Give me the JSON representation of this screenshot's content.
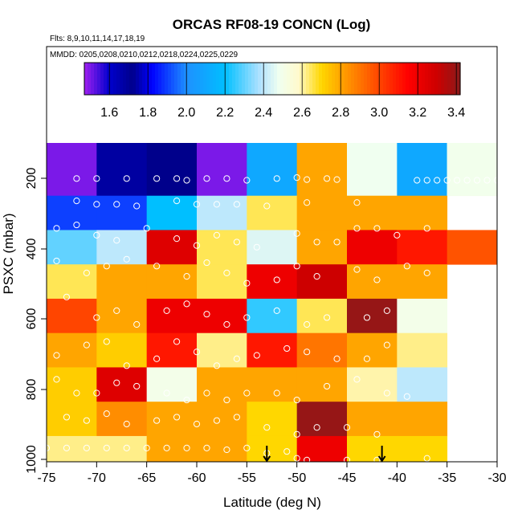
{
  "chart_data": {
    "type": "heatmap",
    "title": "ORCAS RF08-19 CONCN (Log)",
    "flights_label": "Flts: 8,9,10,11,14,17,18,19",
    "dates_label": "MMDD: 0205,0208,0210,0212,0218,0224,0225,0229",
    "xlabel": "Latitude (deg N)",
    "ylabel": "PSXC (mbar)",
    "xlim": [
      -75,
      -30
    ],
    "ylim": [
      1000,
      100
    ],
    "x_ticks": [
      -75,
      -70,
      -65,
      -60,
      -55,
      -50,
      -45,
      -40,
      -35,
      -30
    ],
    "x_tick_labels": [
      "-75",
      "-70",
      "-65",
      "-60",
      "-55",
      "-50",
      "-45",
      "-40",
      "-35",
      "-30"
    ],
    "y_ticks": [
      200,
      400,
      600,
      800,
      1000
    ],
    "y_tick_labels": [
      "200",
      "400",
      "600",
      "800",
      "1000"
    ],
    "colorbar": {
      "range": [
        1.47,
        3.42
      ],
      "ticks": [
        1.6,
        1.8,
        2.0,
        2.2,
        2.4,
        2.6,
        2.8,
        3.0,
        3.2,
        3.4
      ],
      "tick_labels": [
        "1.6",
        "1.8",
        "2.0",
        "2.2",
        "2.4",
        "2.6",
        "2.8",
        "3.0",
        "3.2",
        "3.4"
      ],
      "stops": [
        [
          1.47,
          "#a020f0"
        ],
        [
          1.6,
          "#0000cd"
        ],
        [
          1.72,
          "#00008b"
        ],
        [
          1.82,
          "#0000ff"
        ],
        [
          2.0,
          "#1e90ff"
        ],
        [
          2.2,
          "#00bfff"
        ],
        [
          2.38,
          "#b0e2ff"
        ],
        [
          2.48,
          "#f0fff0"
        ],
        [
          2.58,
          "#fffacd"
        ],
        [
          2.7,
          "#ffd700"
        ],
        [
          2.8,
          "#ffa500"
        ],
        [
          3.0,
          "#ff4500"
        ],
        [
          3.15,
          "#ff0000"
        ],
        [
          3.3,
          "#cd0000"
        ],
        [
          3.42,
          "#8b1a1a"
        ]
      ]
    },
    "x_bins": [
      -75,
      -70,
      -65,
      -60,
      -55,
      -50,
      -45,
      -40,
      -35,
      -30
    ],
    "y_bins": [
      100,
      175,
      225,
      275,
      325,
      375,
      425,
      475,
      525,
      575,
      625,
      675,
      725,
      775,
      825,
      875,
      925,
      975,
      1000
    ],
    "cells": [
      {
        "lon": -75,
        "p": 100,
        "v": 1.5
      },
      {
        "lon": -70,
        "p": 100,
        "v": 1.68
      },
      {
        "lon": -65,
        "p": 100,
        "v": 1.72
      },
      {
        "lon": -60,
        "p": 100,
        "v": 1.5
      },
      {
        "lon": -55,
        "p": 100,
        "v": 2.1
      },
      {
        "lon": -50,
        "p": 100,
        "v": 2.8
      },
      {
        "lon": -45,
        "p": 100,
        "v": 2.48
      },
      {
        "lon": -40,
        "p": 100,
        "v": 2.1
      },
      {
        "lon": -35,
        "p": 100,
        "v": 2.5
      },
      {
        "lon": -75,
        "p": 225,
        "v": 1.9
      },
      {
        "lon": -70,
        "p": 225,
        "v": 1.9
      },
      {
        "lon": -65,
        "p": 225,
        "v": 2.2
      },
      {
        "lon": -60,
        "p": 225,
        "v": 2.4
      },
      {
        "lon": -55,
        "p": 225,
        "v": 2.65
      },
      {
        "lon": -50,
        "p": 225,
        "v": 2.8
      },
      {
        "lon": -45,
        "p": 225,
        "v": 2.8
      },
      {
        "lon": -40,
        "p": 225,
        "v": 2.8
      },
      {
        "lon": -75,
        "p": 325,
        "v": 2.3
      },
      {
        "lon": -70,
        "p": 325,
        "v": 2.4
      },
      {
        "lon": -65,
        "p": 325,
        "v": 3.25
      },
      {
        "lon": -60,
        "p": 325,
        "v": 2.65
      },
      {
        "lon": -55,
        "p": 325,
        "v": 2.45
      },
      {
        "lon": -50,
        "p": 325,
        "v": 2.8
      },
      {
        "lon": -45,
        "p": 325,
        "v": 3.2
      },
      {
        "lon": -40,
        "p": 325,
        "v": 3.1
      },
      {
        "lon": -35,
        "p": 325,
        "v": 2.97
      },
      {
        "lon": -75,
        "p": 425,
        "v": 2.65
      },
      {
        "lon": -70,
        "p": 425,
        "v": 2.8
      },
      {
        "lon": -65,
        "p": 425,
        "v": 2.8
      },
      {
        "lon": -60,
        "p": 425,
        "v": 2.65
      },
      {
        "lon": -55,
        "p": 425,
        "v": 3.2
      },
      {
        "lon": -50,
        "p": 425,
        "v": 3.3
      },
      {
        "lon": -45,
        "p": 425,
        "v": 2.8
      },
      {
        "lon": -40,
        "p": 425,
        "v": 2.8
      },
      {
        "lon": -75,
        "p": 525,
        "v": 3.0
      },
      {
        "lon": -70,
        "p": 525,
        "v": 2.8
      },
      {
        "lon": -65,
        "p": 525,
        "v": 3.2
      },
      {
        "lon": -60,
        "p": 525,
        "v": 3.2
      },
      {
        "lon": -55,
        "p": 525,
        "v": 2.25
      },
      {
        "lon": -50,
        "p": 525,
        "v": 2.65
      },
      {
        "lon": -45,
        "p": 525,
        "v": 3.4
      },
      {
        "lon": -40,
        "p": 525,
        "v": 2.5
      },
      {
        "lon": -75,
        "p": 625,
        "v": 2.8
      },
      {
        "lon": -70,
        "p": 625,
        "v": 2.72
      },
      {
        "lon": -65,
        "p": 625,
        "v": 3.1
      },
      {
        "lon": -60,
        "p": 625,
        "v": 2.62
      },
      {
        "lon": -55,
        "p": 625,
        "v": 3.1
      },
      {
        "lon": -50,
        "p": 625,
        "v": 2.9
      },
      {
        "lon": -45,
        "p": 625,
        "v": 2.8
      },
      {
        "lon": -40,
        "p": 625,
        "v": 2.62
      },
      {
        "lon": -75,
        "p": 725,
        "v": 2.72
      },
      {
        "lon": -70,
        "p": 725,
        "v": 3.25
      },
      {
        "lon": -65,
        "p": 725,
        "v": 2.5
      },
      {
        "lon": -60,
        "p": 725,
        "v": 2.8
      },
      {
        "lon": -55,
        "p": 725,
        "v": 2.8
      },
      {
        "lon": -50,
        "p": 725,
        "v": 2.8
      },
      {
        "lon": -45,
        "p": 725,
        "v": 2.6
      },
      {
        "lon": -40,
        "p": 725,
        "v": 2.4
      },
      {
        "lon": -75,
        "p": 825,
        "v": 2.72
      },
      {
        "lon": -70,
        "p": 825,
        "v": 2.85
      },
      {
        "lon": -65,
        "p": 825,
        "v": 2.8
      },
      {
        "lon": -60,
        "p": 825,
        "v": 2.8
      },
      {
        "lon": -55,
        "p": 825,
        "v": 2.7
      },
      {
        "lon": -50,
        "p": 825,
        "v": 3.4
      },
      {
        "lon": -45,
        "p": 825,
        "v": 2.8
      },
      {
        "lon": -40,
        "p": 825,
        "v": 2.8
      },
      {
        "lon": -75,
        "p": 925,
        "v": 2.62
      },
      {
        "lon": -70,
        "p": 925,
        "v": 2.62
      },
      {
        "lon": -65,
        "p": 925,
        "v": 2.8
      },
      {
        "lon": -60,
        "p": 925,
        "v": 2.8
      },
      {
        "lon": -55,
        "p": 925,
        "v": 2.7
      },
      {
        "lon": -50,
        "p": 925,
        "v": 3.2
      },
      {
        "lon": -45,
        "p": 925,
        "v": 2.7
      },
      {
        "lon": -40,
        "p": 925,
        "v": 2.7
      }
    ],
    "arrows": [
      {
        "lat": -53,
        "p": 1000
      },
      {
        "lat": -41.5,
        "p": 1000
      }
    ],
    "points": [
      [
        -72,
        175
      ],
      [
        -70,
        175
      ],
      [
        -67,
        175
      ],
      [
        -64,
        175
      ],
      [
        -62,
        175
      ],
      [
        -61,
        180
      ],
      [
        -59,
        175
      ],
      [
        -57,
        175
      ],
      [
        -55,
        180
      ],
      [
        -52,
        175
      ],
      [
        -50,
        173
      ],
      [
        -49,
        178
      ],
      [
        -47,
        175
      ],
      [
        -46,
        178
      ],
      [
        -38,
        180
      ],
      [
        -37,
        180
      ],
      [
        -36,
        180
      ],
      [
        -35,
        180
      ],
      [
        -34,
        180
      ],
      [
        -33,
        180
      ],
      [
        -32,
        180
      ],
      [
        -31,
        180
      ],
      [
        -30,
        180
      ],
      [
        -72,
        240
      ],
      [
        -70,
        250
      ],
      [
        -68,
        250
      ],
      [
        -66,
        255
      ],
      [
        -62,
        240
      ],
      [
        -60,
        250
      ],
      [
        -58,
        250
      ],
      [
        -56,
        250
      ],
      [
        -53,
        255
      ],
      [
        -49,
        245
      ],
      [
        -44,
        245
      ],
      [
        -74,
        320
      ],
      [
        -72,
        310
      ],
      [
        -70,
        340
      ],
      [
        -68,
        355
      ],
      [
        -65,
        320
      ],
      [
        -62,
        350
      ],
      [
        -60,
        370
      ],
      [
        -58,
        340
      ],
      [
        -56,
        360
      ],
      [
        -54,
        375
      ],
      [
        -50,
        335
      ],
      [
        -48,
        360
      ],
      [
        -46,
        360
      ],
      [
        -44,
        320
      ],
      [
        -42,
        320
      ],
      [
        -40,
        340
      ],
      [
        -37,
        320
      ],
      [
        -74,
        415
      ],
      [
        -71,
        450
      ],
      [
        -69,
        430
      ],
      [
        -67,
        410
      ],
      [
        -64,
        430
      ],
      [
        -61,
        460
      ],
      [
        -59,
        420
      ],
      [
        -57,
        450
      ],
      [
        -55,
        480
      ],
      [
        -52,
        470
      ],
      [
        -50,
        430
      ],
      [
        -48,
        460
      ],
      [
        -44,
        440
      ],
      [
        -42,
        470
      ],
      [
        -39,
        430
      ],
      [
        -37,
        450
      ],
      [
        -73,
        520
      ],
      [
        -70,
        580
      ],
      [
        -68,
        560
      ],
      [
        -66,
        600
      ],
      [
        -63,
        560
      ],
      [
        -61,
        540
      ],
      [
        -59,
        570
      ],
      [
        -57,
        600
      ],
      [
        -55,
        580
      ],
      [
        -52,
        560
      ],
      [
        -49,
        600
      ],
      [
        -47,
        580
      ],
      [
        -43,
        580
      ],
      [
        -41,
        560
      ],
      [
        -74,
        690
      ],
      [
        -71,
        660
      ],
      [
        -69,
        650
      ],
      [
        -67,
        720
      ],
      [
        -64,
        700
      ],
      [
        -62,
        650
      ],
      [
        -60,
        680
      ],
      [
        -58,
        720
      ],
      [
        -56,
        700
      ],
      [
        -54,
        690
      ],
      [
        -51,
        670
      ],
      [
        -49,
        680
      ],
      [
        -46,
        700
      ],
      [
        -43,
        700
      ],
      [
        -41,
        660
      ],
      [
        -74,
        760
      ],
      [
        -72,
        800
      ],
      [
        -70,
        800
      ],
      [
        -68,
        770
      ],
      [
        -66,
        780
      ],
      [
        -63,
        800
      ],
      [
        -61,
        820
      ],
      [
        -59,
        800
      ],
      [
        -57,
        820
      ],
      [
        -55,
        800
      ],
      [
        -52,
        800
      ],
      [
        -50,
        820
      ],
      [
        -47,
        780
      ],
      [
        -44,
        760
      ],
      [
        -41,
        800
      ],
      [
        -39,
        810
      ],
      [
        -73,
        870
      ],
      [
        -71,
        880
      ],
      [
        -69,
        860
      ],
      [
        -67,
        890
      ],
      [
        -64,
        880
      ],
      [
        -62,
        870
      ],
      [
        -60,
        890
      ],
      [
        -58,
        880
      ],
      [
        -56,
        870
      ],
      [
        -53,
        900
      ],
      [
        -50,
        920
      ],
      [
        -48,
        900
      ],
      [
        -45,
        900
      ],
      [
        -42,
        920
      ],
      [
        -75,
        960
      ],
      [
        -73,
        960
      ],
      [
        -71,
        960
      ],
      [
        -69,
        960
      ],
      [
        -67,
        960
      ],
      [
        -65,
        960
      ],
      [
        -63,
        960
      ],
      [
        -61,
        960
      ],
      [
        -59,
        960
      ],
      [
        -57,
        965
      ],
      [
        -55,
        960
      ],
      [
        -53,
        975
      ],
      [
        -51,
        970
      ],
      [
        -50,
        990
      ],
      [
        -49,
        995
      ],
      [
        -45,
        995
      ],
      [
        -42,
        995
      ],
      [
        -37,
        990
      ]
    ]
  }
}
